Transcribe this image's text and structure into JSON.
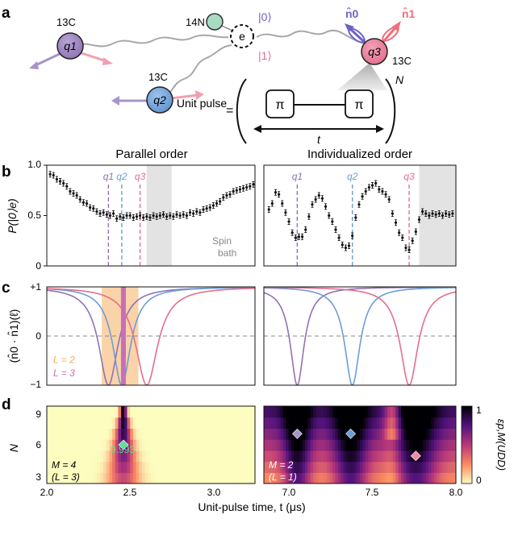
{
  "panel_letters": [
    "a",
    "b",
    "c",
    "d"
  ],
  "schematic": {
    "nitrogen_label": "14N",
    "electron_label": "e",
    "state0": "|0⟩",
    "state1": "|1⟩",
    "q1": "q1",
    "q2": "q2",
    "q3": "q3",
    "carbon_label": "13C",
    "n0_label": "n̂0",
    "n1_label": "n̂1",
    "unit_pulse_label": "Unit pulse",
    "equals": "=",
    "pi": "π",
    "t_label": "t",
    "N_label": "N",
    "colors": {
      "q1": "#8e73b3",
      "q2": "#6b9ed6",
      "q3": "#e36f8e",
      "nitrogen": "#a8dcc2",
      "n0": "#6c63c8",
      "n1": "#ef6f7a"
    }
  },
  "chart_data": [
    {
      "type": "scatter",
      "panel": "b-left",
      "title": "Parallel order",
      "ylabel": "P(|0⟩e)",
      "ylim": [
        0,
        1
      ],
      "yticks": [
        "0",
        "0.5",
        "1.0"
      ],
      "xlim": [
        2.0,
        3.25
      ],
      "markers": [
        {
          "label": "q1",
          "x": 2.37,
          "color": "#8e73b3"
        },
        {
          "label": "q2",
          "x": 2.45,
          "color": "#6b9ed6"
        },
        {
          "label": "q3",
          "x": 2.56,
          "color": "#e36f8e"
        }
      ],
      "shaded": {
        "x0": 2.6,
        "x1": 2.75,
        "label": "Spin bath"
      },
      "x": [
        2.02,
        2.04,
        2.06,
        2.08,
        2.1,
        2.12,
        2.14,
        2.16,
        2.18,
        2.2,
        2.22,
        2.24,
        2.26,
        2.28,
        2.3,
        2.32,
        2.34,
        2.36,
        2.38,
        2.4,
        2.42,
        2.44,
        2.46,
        2.48,
        2.5,
        2.52,
        2.54,
        2.56,
        2.58,
        2.6,
        2.62,
        2.64,
        2.66,
        2.68,
        2.7,
        2.72,
        2.74,
        2.76,
        2.78,
        2.8,
        2.82,
        2.84,
        2.86,
        2.88,
        2.9,
        2.92,
        2.94,
        2.96,
        2.98,
        3.0,
        3.02,
        3.04,
        3.06,
        3.08,
        3.1,
        3.12,
        3.14,
        3.16,
        3.18,
        3.2,
        3.22,
        3.24
      ],
      "y": [
        0.91,
        0.9,
        0.86,
        0.84,
        0.82,
        0.79,
        0.74,
        0.72,
        0.7,
        0.66,
        0.63,
        0.62,
        0.58,
        0.57,
        0.54,
        0.52,
        0.53,
        0.51,
        0.5,
        0.52,
        0.47,
        0.49,
        0.48,
        0.5,
        0.5,
        0.48,
        0.49,
        0.5,
        0.48,
        0.49,
        0.48,
        0.5,
        0.49,
        0.5,
        0.51,
        0.49,
        0.5,
        0.49,
        0.51,
        0.5,
        0.51,
        0.5,
        0.53,
        0.52,
        0.54,
        0.53,
        0.56,
        0.57,
        0.58,
        0.6,
        0.62,
        0.64,
        0.68,
        0.7,
        0.71,
        0.74,
        0.75,
        0.76,
        0.77,
        0.78,
        0.79,
        0.81
      ]
    },
    {
      "type": "scatter",
      "panel": "b-right",
      "title": "Individualized order",
      "xlim": [
        6.85,
        8.0
      ],
      "markers": [
        {
          "label": "q1",
          "x": 7.05,
          "color": "#8e73b3"
        },
        {
          "label": "q2",
          "x": 7.38,
          "color": "#6b9ed6"
        },
        {
          "label": "q3",
          "x": 7.72,
          "color": "#e36f8e"
        }
      ],
      "shaded": {
        "x0": 7.78,
        "x1": 8.0
      },
      "x": [
        6.88,
        6.9,
        6.92,
        6.94,
        6.96,
        6.98,
        7.0,
        7.02,
        7.04,
        7.06,
        7.08,
        7.1,
        7.12,
        7.14,
        7.16,
        7.18,
        7.2,
        7.22,
        7.24,
        7.26,
        7.28,
        7.3,
        7.32,
        7.34,
        7.36,
        7.38,
        7.4,
        7.42,
        7.44,
        7.46,
        7.48,
        7.5,
        7.52,
        7.54,
        7.56,
        7.58,
        7.6,
        7.62,
        7.64,
        7.66,
        7.68,
        7.7,
        7.72,
        7.74,
        7.76,
        7.78,
        7.8,
        7.82,
        7.84,
        7.86,
        7.88,
        7.9,
        7.92,
        7.94,
        7.96,
        7.98
      ],
      "y": [
        0.56,
        0.62,
        0.73,
        0.71,
        0.62,
        0.53,
        0.44,
        0.33,
        0.28,
        0.29,
        0.29,
        0.36,
        0.49,
        0.61,
        0.66,
        0.7,
        0.67,
        0.59,
        0.5,
        0.44,
        0.36,
        0.28,
        0.21,
        0.18,
        0.2,
        0.3,
        0.48,
        0.61,
        0.69,
        0.74,
        0.78,
        0.8,
        0.82,
        0.76,
        0.74,
        0.71,
        0.66,
        0.52,
        0.43,
        0.33,
        0.28,
        0.18,
        0.16,
        0.25,
        0.34,
        0.46,
        0.54,
        0.52,
        0.5,
        0.52,
        0.51,
        0.52,
        0.5,
        0.52,
        0.51,
        0.52
      ]
    },
    {
      "type": "line",
      "panel": "c-left",
      "ylabel": "(n̂0 · n̂1)(ℓ)",
      "yticks": [
        "−1",
        "0",
        "+1"
      ],
      "ylim": [
        -1,
        1
      ],
      "xlim": [
        2.0,
        3.25
      ],
      "series": [
        {
          "color": "#8e73b3",
          "center": 2.37,
          "width": 0.07
        },
        {
          "color": "#6b9ed6",
          "center": 2.45,
          "width": 0.065
        },
        {
          "color": "#e36f8e",
          "center": 2.6,
          "width": 0.08
        }
      ],
      "band": {
        "x0": 2.33,
        "x1": 2.55,
        "color": "#fbd3a8",
        "label": "L = 2"
      },
      "line": {
        "x": 2.46,
        "color": "#c86fb8",
        "label": "L = 3"
      }
    },
    {
      "type": "line",
      "panel": "c-right",
      "xlim": [
        6.85,
        8.0
      ],
      "series": [
        {
          "color": "#8e73b3",
          "center": 7.05,
          "width": 0.05
        },
        {
          "color": "#6b9ed6",
          "center": 7.38,
          "width": 0.055
        },
        {
          "color": "#e36f8e",
          "center": 7.72,
          "width": 0.065
        }
      ]
    },
    {
      "type": "heatmap",
      "panel": "d-left",
      "ylabel": "N",
      "yticks": [
        "3",
        "6",
        "9"
      ],
      "xticks": [
        "2.0",
        "2.5",
        "3.0"
      ],
      "xlim": [
        2.0,
        3.25
      ],
      "rows_N": [
        3,
        4,
        5,
        6,
        7,
        8,
        9
      ],
      "annotation": {
        "x": 2.46,
        "N": 6,
        "value": "0.993",
        "color": "#5ee09a"
      },
      "texts": [
        "M = 4",
        "(L = 3)"
      ]
    },
    {
      "type": "heatmap",
      "panel": "d-right",
      "xticks": [
        "7.0",
        "7.5",
        "8.0"
      ],
      "xlim": [
        6.85,
        8.0
      ],
      "rows_N": [
        3,
        4,
        5,
        6,
        7,
        8,
        9
      ],
      "annotations": [
        {
          "x": 7.05,
          "N": 7,
          "color": "#a894c8"
        },
        {
          "x": 7.37,
          "N": 7,
          "color": "#6b9ed6"
        },
        {
          "x": 7.76,
          "N": 5,
          "color": "#f08aa8"
        }
      ],
      "texts": [
        "M = 2",
        "(L = 1)"
      ]
    }
  ],
  "colorbar": {
    "ticks": [
      "0",
      "1"
    ],
    "label": "εp,M(UDD)"
  },
  "xlabel": "Unit-pulse time, t (μs)"
}
